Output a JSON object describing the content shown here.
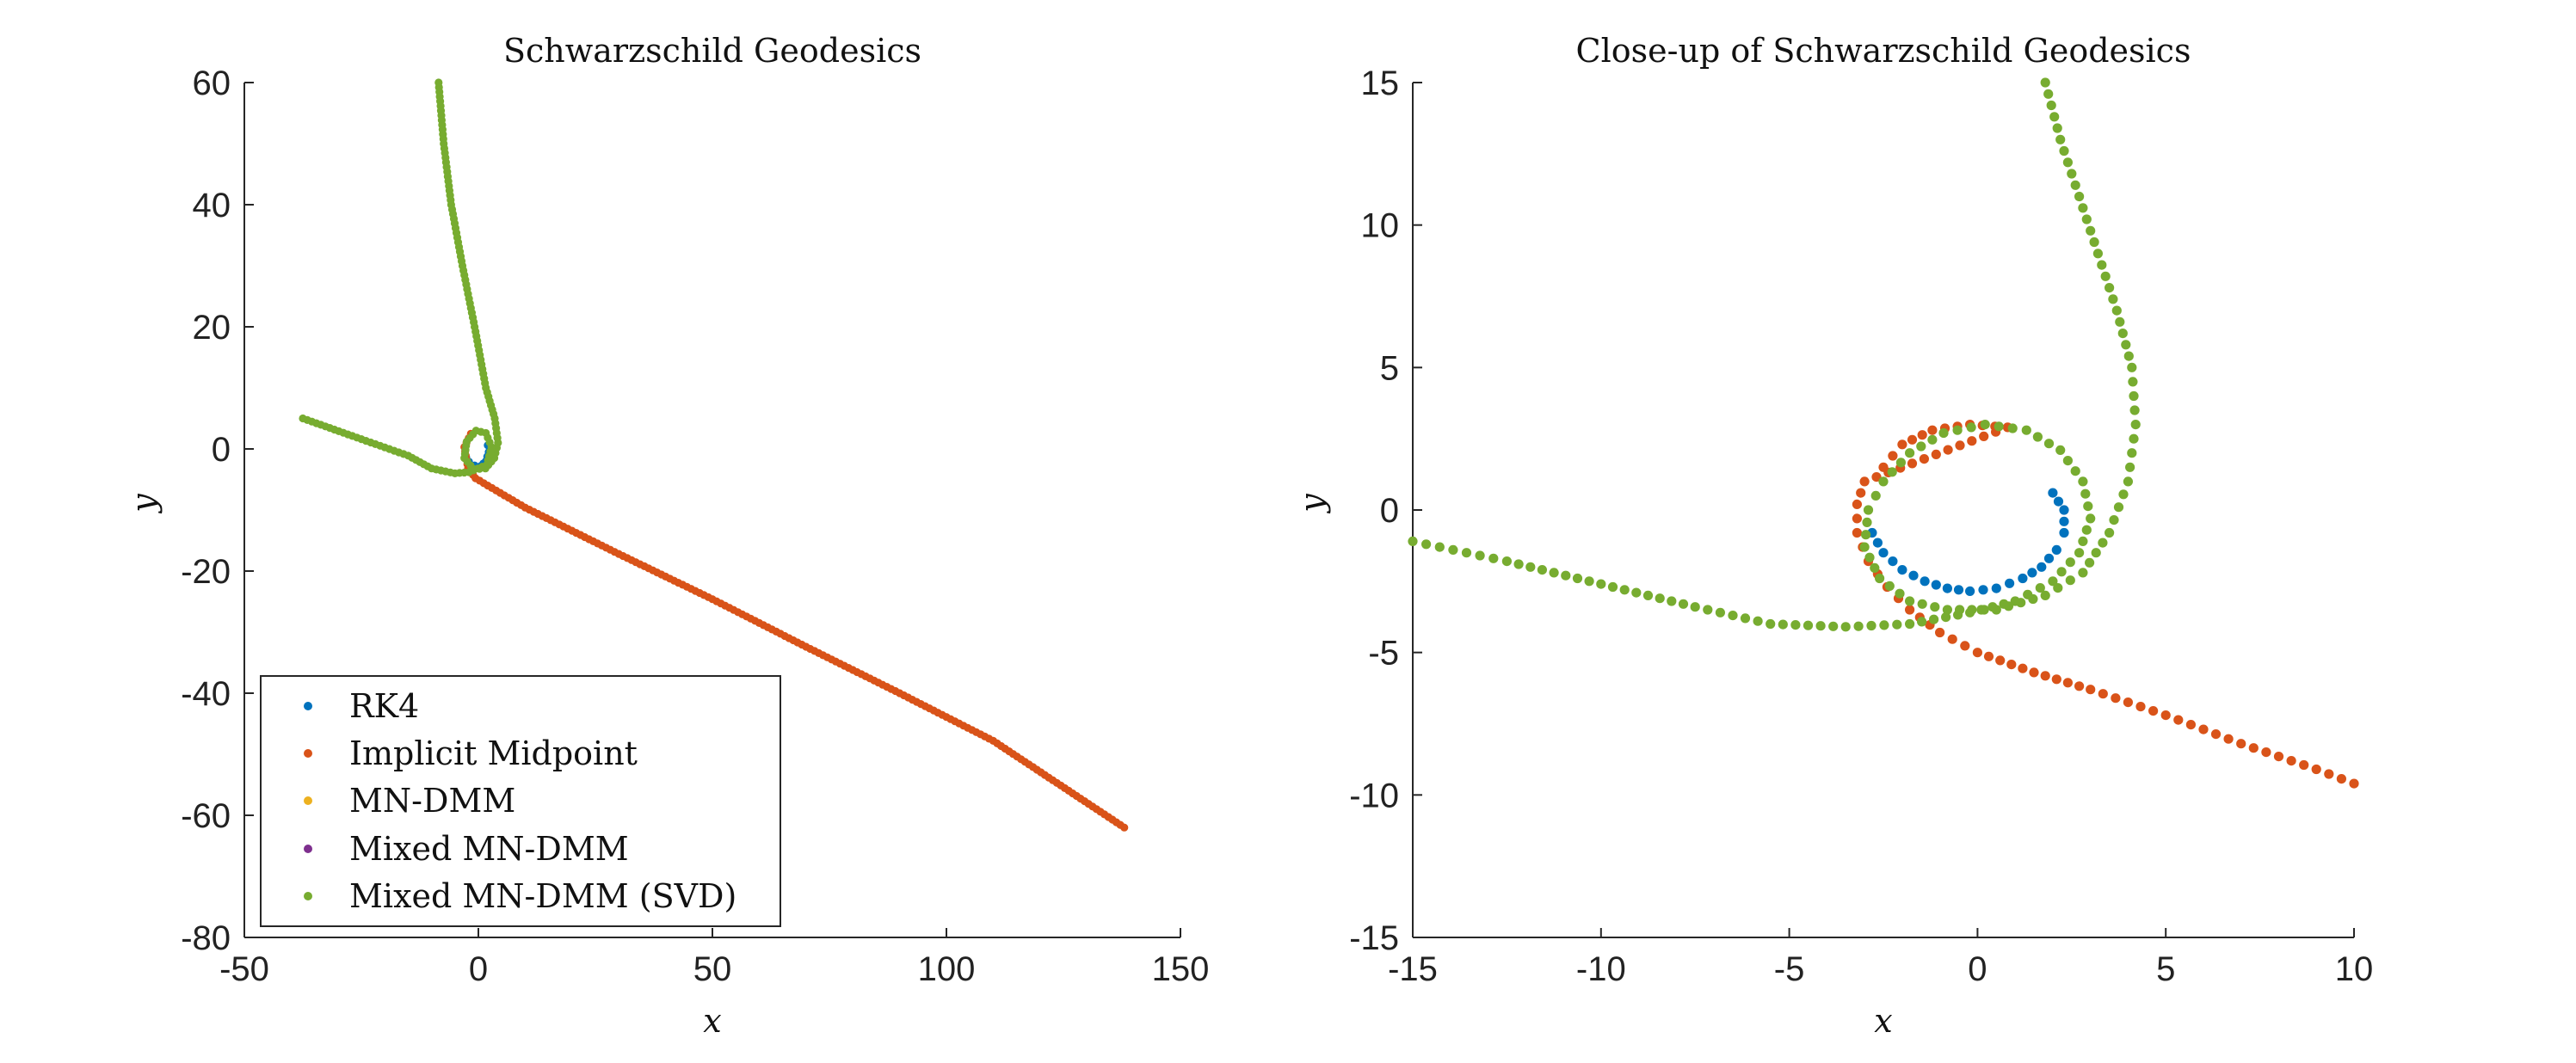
{
  "chart_data": [
    {
      "type": "scatter",
      "title": "Schwarzschild Geodesics",
      "xlabel": "x",
      "ylabel": "y",
      "xlim": [
        -50,
        150
      ],
      "ylim": [
        -80,
        60
      ],
      "xticks": [
        -50,
        0,
        50,
        100,
        150
      ],
      "yticks": [
        -80,
        -60,
        -40,
        -20,
        0,
        20,
        40,
        60
      ],
      "grid": false,
      "legend_position": "bottom-left",
      "legend": [
        "RK4",
        "Implicit Midpoint",
        "MN-DMM",
        "Mixed MN-DMM",
        "Mixed MN-DMM (SVD)"
      ],
      "series": [
        {
          "name": "RK4",
          "color": "#0072BD",
          "points": [
            [
              2.0,
              0.6
            ],
            [
              2.2,
              -0.5
            ],
            [
              1.6,
              -2.0
            ],
            [
              0.5,
              -2.8
            ],
            [
              -0.8,
              -2.7
            ],
            [
              -2.0,
              -2.1
            ],
            [
              -2.6,
              -1.4
            ]
          ]
        },
        {
          "name": "Implicit Midpoint",
          "color": "#D95319",
          "points": [
            [
              -1.6,
              2.5
            ],
            [
              -3.0,
              0.3
            ],
            [
              -2.2,
              -3.2
            ],
            [
              -0.6,
              -4.8
            ],
            [
              2.0,
              -6.0
            ],
            [
              10,
              -9.6
            ],
            [
              30,
              -17.2
            ],
            [
              50,
              -24.6
            ],
            [
              70,
              -32.4
            ],
            [
              90,
              -40.0
            ],
            [
              110,
              -47.8
            ],
            [
              138,
              -62.0
            ]
          ]
        },
        {
          "name": "MN-DMM",
          "color": "#EDB120",
          "points": []
        },
        {
          "name": "Mixed MN-DMM",
          "color": "#7E2F8E",
          "points": []
        },
        {
          "name": "Mixed MN-DMM (SVD)",
          "color": "#77AC30",
          "points": [
            [
              -8.5,
              60
            ],
            [
              -7.4,
              50
            ],
            [
              -5.8,
              40
            ],
            [
              -3.4,
              30
            ],
            [
              -0.8,
              20
            ],
            [
              1.6,
              10
            ],
            [
              3.5,
              5
            ],
            [
              4.2,
              1
            ],
            [
              3.4,
              -1.5
            ],
            [
              1.5,
              -3.2
            ],
            [
              -1.0,
              -3.3
            ],
            [
              -3.0,
              -1.5
            ],
            [
              -2.5,
              1.2
            ],
            [
              -0.5,
              3.0
            ],
            [
              1.6,
              2.6
            ],
            [
              2.8,
              0.3
            ],
            [
              1.8,
              -2.6
            ],
            [
              -2.0,
              -3.8
            ],
            [
              -5.0,
              -4.0
            ],
            [
              -10.0,
              -3.2
            ],
            [
              -15.0,
              -1.1
            ],
            [
              -25.0,
              1.6
            ],
            [
              -37.5,
              5.0
            ]
          ]
        }
      ]
    },
    {
      "type": "scatter",
      "title": "Close-up of Schwarzschild Geodesics",
      "xlabel": "x",
      "ylabel": "y",
      "xlim": [
        -15,
        10
      ],
      "ylim": [
        -15,
        15
      ],
      "xticks": [
        -15,
        -10,
        -5,
        0,
        5,
        10
      ],
      "yticks": [
        -15,
        -10,
        -5,
        0,
        5,
        10,
        15
      ],
      "grid": false,
      "series": [
        {
          "name": "RK4",
          "color": "#0072BD",
          "points": [
            [
              2.0,
              0.6
            ],
            [
              2.3,
              0.0
            ],
            [
              2.3,
              -0.8
            ],
            [
              2.1,
              -1.4
            ],
            [
              1.7,
              -2.0
            ],
            [
              1.2,
              -2.4
            ],
            [
              0.5,
              -2.75
            ],
            [
              -0.2,
              -2.85
            ],
            [
              -0.8,
              -2.75
            ],
            [
              -1.4,
              -2.5
            ],
            [
              -2.0,
              -2.1
            ],
            [
              -2.5,
              -1.5
            ],
            [
              -2.8,
              -0.8
            ]
          ]
        },
        {
          "name": "Implicit Midpoint",
          "color": "#D95319",
          "points": [
            [
              -2.5,
              1.5
            ],
            [
              -2.0,
              2.3
            ],
            [
              -1.2,
              2.8
            ],
            [
              -0.2,
              3.0
            ],
            [
              0.8,
              2.9
            ],
            [
              -3.0,
              1.0
            ],
            [
              -3.2,
              0.2
            ],
            [
              -3.2,
              -0.8
            ],
            [
              -2.9,
              -1.8
            ],
            [
              -2.4,
              -2.7
            ],
            [
              -1.8,
              -3.5
            ],
            [
              -1.0,
              -4.3
            ],
            [
              0.0,
              -5.0
            ],
            [
              1.5,
              -5.7
            ],
            [
              3.0,
              -6.3
            ],
            [
              5.0,
              -7.2
            ],
            [
              7.0,
              -8.2
            ],
            [
              9.0,
              -9.1
            ],
            [
              10.0,
              -9.6
            ]
          ]
        },
        {
          "name": "MN-DMM",
          "color": "#EDB120",
          "points": []
        },
        {
          "name": "Mixed MN-DMM",
          "color": "#7E2F8E",
          "points": []
        },
        {
          "name": "Mixed MN-DMM (SVD)",
          "color": "#77AC30",
          "points": [
            [
              1.8,
              15.0
            ],
            [
              2.2,
              13.0
            ],
            [
              2.7,
              11.0
            ],
            [
              3.2,
              9.0
            ],
            [
              3.7,
              7.0
            ],
            [
              4.1,
              5.0
            ],
            [
              4.2,
              3.0
            ],
            [
              4.0,
              1.0
            ],
            [
              3.5,
              -0.8
            ],
            [
              2.8,
              -2.2
            ],
            [
              1.8,
              -3.0
            ],
            [
              0.5,
              -3.5
            ],
            [
              -0.8,
              -3.5
            ],
            [
              -1.8,
              -3.2
            ],
            [
              -2.6,
              -2.4
            ],
            [
              -3.0,
              -1.3
            ],
            [
              -2.9,
              0.0
            ],
            [
              -2.5,
              1.0
            ],
            [
              -1.8,
              2.0
            ],
            [
              -0.9,
              2.7
            ],
            [
              0.2,
              3.0
            ],
            [
              1.3,
              2.8
            ],
            [
              2.2,
              2.1
            ],
            [
              2.8,
              1.0
            ],
            [
              3.0,
              -0.3
            ],
            [
              2.7,
              -1.5
            ],
            [
              2.0,
              -2.5
            ],
            [
              1.0,
              -3.2
            ],
            [
              -0.2,
              -3.6
            ],
            [
              -1.8,
              -4.0
            ],
            [
              -3.5,
              -4.1
            ],
            [
              -5.5,
              -4.0
            ],
            [
              -7.5,
              -3.4
            ],
            [
              -10.0,
              -2.6
            ],
            [
              -12.5,
              -1.8
            ],
            [
              -15.0,
              -1.1
            ]
          ]
        }
      ]
    }
  ]
}
